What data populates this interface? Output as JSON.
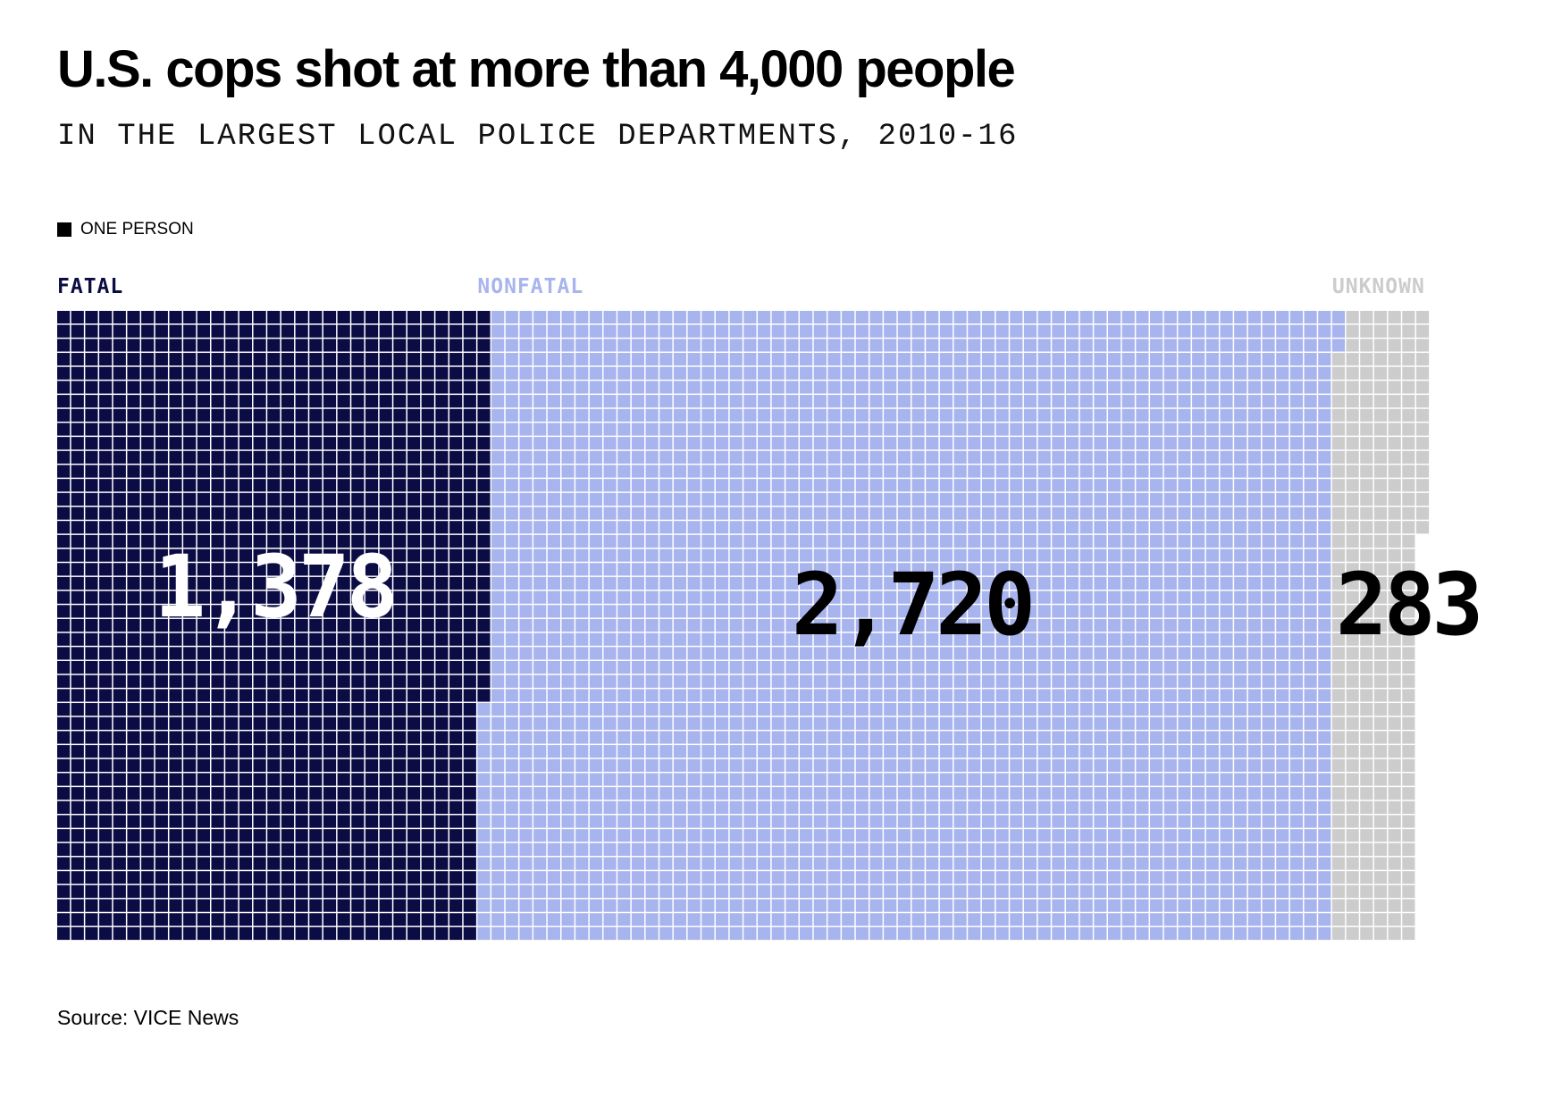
{
  "title": "U.S. cops shot at more than 4,000 people",
  "subtitle": "IN THE LARGEST LOCAL POLICE DEPARTMENTS, 2010-16",
  "legend": {
    "swatch_color": "#000000",
    "label": "ONE PERSON"
  },
  "source": "Source: VICE News",
  "chart_data": {
    "type": "waffle",
    "title": "U.S. cops shot at more than 4,000 people",
    "subtitle": "IN THE LARGEST LOCAL POLICE DEPARTMENTS, 2010-16",
    "unit": "ONE PERSON",
    "rows": 45,
    "fill_direction": "column-major, top to bottom, left to right",
    "grid_lines": "white",
    "categories": [
      {
        "name": "FATAL",
        "value": 1378,
        "value_label": "1,378",
        "color": "#0c0c45",
        "label_color": "#0c0c45",
        "value_color": "#ffffff"
      },
      {
        "name": "NONFATAL",
        "value": 2720,
        "value_label": "2,720",
        "color": "#a8b4ed",
        "label_color": "#a8b4ed",
        "value_color": "#000000"
      },
      {
        "name": "UNKNOWN",
        "value": 283,
        "value_label": "283",
        "color": "#cccccc",
        "label_color": "#cccccc",
        "value_color": "#000000"
      }
    ]
  }
}
